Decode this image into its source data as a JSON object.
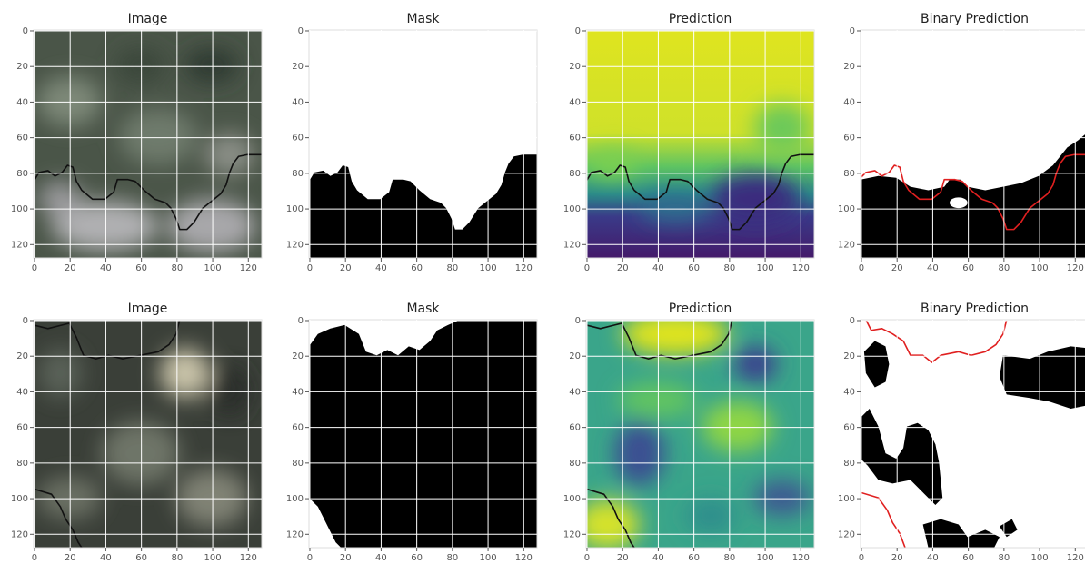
{
  "figure": {
    "panels": [
      {
        "title": "Image",
        "xlim": [
          -0.5,
          127.5
        ],
        "ylim": [
          127.5,
          -0.5
        ],
        "xticks": [
          0,
          20,
          40,
          60,
          80,
          100,
          120
        ],
        "yticks": [
          0,
          20,
          40,
          60,
          80,
          100,
          120
        ]
      },
      {
        "title": "Mask",
        "xlim": [
          -0.5,
          127.5
        ],
        "ylim": [
          127.5,
          -0.5
        ],
        "xticks": [
          0,
          20,
          40,
          60,
          80,
          100,
          120
        ],
        "yticks": [
          0,
          20,
          40,
          60,
          80,
          100,
          120
        ]
      },
      {
        "title": "Prediction",
        "xlim": [
          -0.5,
          127.5
        ],
        "ylim": [
          127.5,
          -0.5
        ],
        "xticks": [
          0,
          20,
          40,
          60,
          80,
          100,
          120
        ],
        "yticks": [
          0,
          20,
          40,
          60,
          80,
          100,
          120
        ]
      },
      {
        "title": "Binary Prediction",
        "xlim": [
          -0.5,
          127.5
        ],
        "ylim": [
          127.5,
          -0.5
        ],
        "xticks": [
          0,
          20,
          40,
          60,
          80,
          100,
          120
        ],
        "yticks": [
          0,
          20,
          40,
          60,
          80,
          100,
          120
        ]
      },
      {
        "title": "Image",
        "xlim": [
          -0.5,
          127.5
        ],
        "ylim": [
          127.5,
          -0.5
        ],
        "xticks": [
          0,
          20,
          40,
          60,
          80,
          100,
          120
        ],
        "yticks": [
          0,
          20,
          40,
          60,
          80,
          100,
          120
        ]
      },
      {
        "title": "Mask",
        "xlim": [
          -0.5,
          127.5
        ],
        "ylim": [
          127.5,
          -0.5
        ],
        "xticks": [
          0,
          20,
          40,
          60,
          80,
          100,
          120
        ],
        "yticks": [
          0,
          20,
          40,
          60,
          80,
          100,
          120
        ]
      },
      {
        "title": "Prediction",
        "xlim": [
          -0.5,
          127.5
        ],
        "ylim": [
          127.5,
          -0.5
        ],
        "xticks": [
          0,
          20,
          40,
          60,
          80,
          100,
          120
        ],
        "yticks": [
          0,
          20,
          40,
          60,
          80,
          100,
          120
        ]
      },
      {
        "title": "Binary Prediction",
        "xlim": [
          -0.5,
          127.5
        ],
        "ylim": [
          127.5,
          -0.5
        ],
        "xticks": [
          0,
          20,
          40,
          60,
          80,
          100,
          120
        ],
        "yticks": [
          0,
          20,
          40,
          60,
          80,
          100,
          120
        ]
      }
    ]
  }
}
